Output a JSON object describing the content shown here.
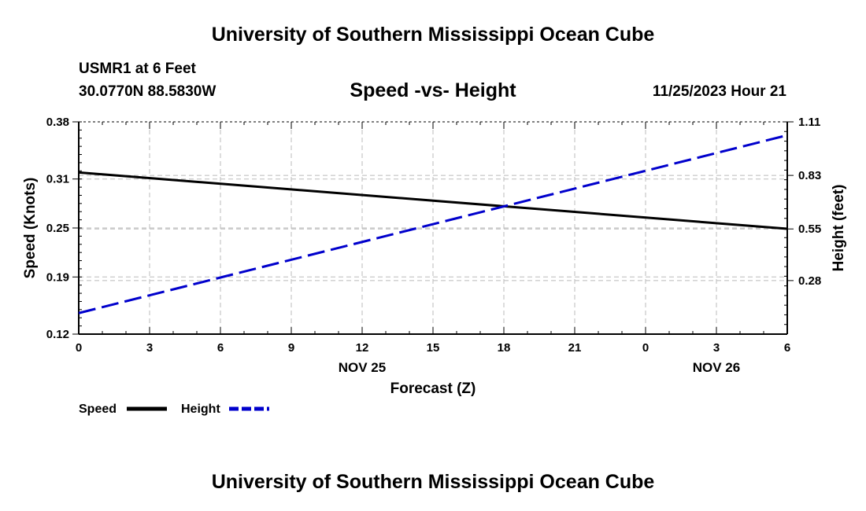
{
  "header": {
    "title": "University of Southern Mississippi Ocean Cube",
    "station": "USMR1 at 6 Feet",
    "coordinates": "30.0770N  88.5830W",
    "subtitle": "Speed -vs- Height",
    "datetime": "11/25/2023 Hour 21"
  },
  "footer": {
    "title": "University of Southern Mississippi Ocean Cube"
  },
  "chart_data": {
    "type": "line",
    "xlabel": "Forecast (Z)",
    "ylabel_left": "Speed (Knots)",
    "ylabel_right": "Height (feet)",
    "x_tick_labels": [
      "0",
      "3",
      "6",
      "9",
      "12",
      "15",
      "18",
      "21",
      "0",
      "3",
      "6"
    ],
    "x_hours": [
      0,
      3,
      6,
      9,
      12,
      15,
      18,
      21,
      24,
      27,
      30
    ],
    "date_labels": [
      {
        "label": "NOV 25",
        "hour": 12
      },
      {
        "label": "NOV 26",
        "hour": 27
      }
    ],
    "xlim": [
      0,
      30
    ],
    "ylim_left": [
      0.12,
      0.38
    ],
    "y_ticks_left": [
      "0.12",
      "0.19",
      "0.25",
      "0.31",
      "0.38"
    ],
    "ylim_right": [
      0.0,
      1.11
    ],
    "y_ticks_right": [
      "0.28",
      "0.55",
      "0.83",
      "1.11"
    ],
    "grid": true,
    "series": [
      {
        "name": "Speed",
        "axis": "left",
        "color": "#000000",
        "style": "solid",
        "x": [
          0,
          30
        ],
        "values": [
          0.318,
          0.249
        ]
      },
      {
        "name": "Height",
        "axis": "right",
        "color": "#0000cc",
        "style": "dashed",
        "x": [
          0,
          30
        ],
        "values": [
          0.11,
          1.04
        ]
      }
    ],
    "legend": [
      {
        "label": "Speed",
        "color": "#000000",
        "style": "solid"
      },
      {
        "label": "Height",
        "color": "#0000cc",
        "style": "dashed"
      }
    ]
  }
}
